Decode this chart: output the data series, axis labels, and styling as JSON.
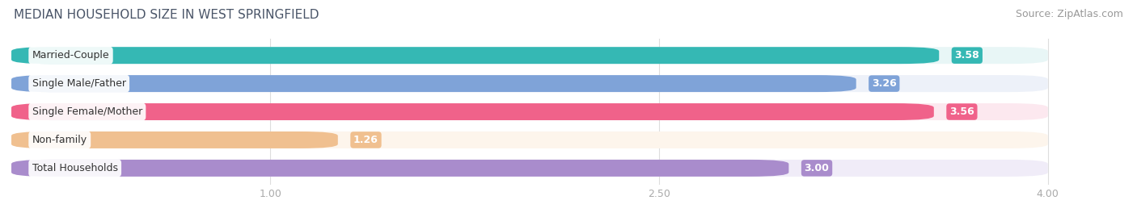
{
  "title": "MEDIAN HOUSEHOLD SIZE IN WEST SPRINGFIELD",
  "source": "Source: ZipAtlas.com",
  "categories": [
    "Married-Couple",
    "Single Male/Father",
    "Single Female/Mother",
    "Non-family",
    "Total Households"
  ],
  "values": [
    3.58,
    3.26,
    3.56,
    1.26,
    3.0
  ],
  "bar_colors": [
    "#35b8b4",
    "#7fa3d8",
    "#f0628a",
    "#f0c090",
    "#a98ccc"
  ],
  "bar_bg_colors": [
    "#e8f6f6",
    "#edf1f9",
    "#fce8ef",
    "#fdf5ec",
    "#f0ecf8"
  ],
  "fig_bg": "#ffffff",
  "title_color": "#4a5568",
  "source_color": "#999999",
  "label_color": "#333333",
  "value_color": "#ffffff",
  "tick_color": "#aaaaaa",
  "grid_color": "#dddddd",
  "xlim_min": 0,
  "xlim_max": 4.3,
  "xticks": [
    1.0,
    2.5,
    4.0
  ],
  "title_fontsize": 11,
  "label_fontsize": 9,
  "value_fontsize": 9,
  "source_fontsize": 9,
  "tick_fontsize": 9
}
